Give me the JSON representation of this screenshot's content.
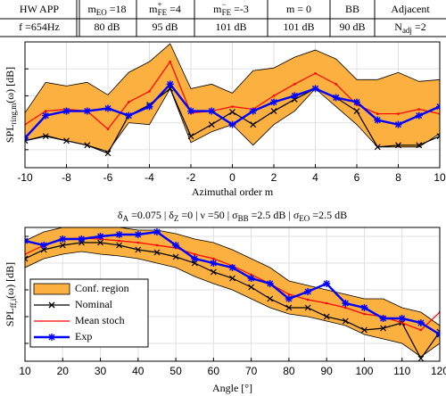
{
  "header": {
    "rows": [
      [
        [
          {
            "t": "HW  APP"
          }
        ],
        [
          {
            "t": "m"
          },
          {
            "sub": "EO"
          },
          {
            "t": " =18"
          }
        ],
        [
          {
            "t": "m"
          },
          {
            "sup": "+"
          },
          {
            "sub": "FE"
          },
          {
            "t": " =4"
          }
        ],
        [
          {
            "t": "m"
          },
          {
            "sup": "−"
          },
          {
            "sub": "FE"
          },
          {
            "t": " =-3"
          }
        ],
        [
          {
            "t": "m = 0"
          }
        ],
        [
          {
            "t": "BB"
          }
        ],
        [
          {
            "t": "Adjacent"
          }
        ]
      ],
      [
        [
          {
            "t": "f =654Hz"
          }
        ],
        [
          {
            "t": "80 dB"
          }
        ],
        [
          {
            "t": "95 dB"
          }
        ],
        [
          {
            "t": "101 dB"
          }
        ],
        [
          {
            "t": "101 dB"
          }
        ],
        [
          {
            "t": "90 dB"
          }
        ],
        [
          {
            "t": "N"
          },
          {
            "sub": "adj"
          },
          {
            "t": " =2"
          }
        ]
      ]
    ]
  },
  "chart_data": [
    {
      "type": "line",
      "xlabel": [
        {
          "t": "Azimuthal order m"
        }
      ],
      "ylabel": [
        {
          "t": "SPL"
        },
        {
          "sub": "ring,m"
        },
        {
          "t": "(ω) [dB]"
        }
      ],
      "x": [
        -10,
        -9,
        -8,
        -7,
        -6,
        -5,
        -4,
        -3,
        -2,
        -1,
        0,
        1,
        2,
        3,
        4,
        5,
        6,
        7,
        8,
        9,
        10
      ],
      "xlim": [
        -10,
        10
      ],
      "xticks": [
        -10,
        -8,
        -6,
        -4,
        -2,
        0,
        2,
        4,
        6,
        8,
        10
      ],
      "ylim": [
        0,
        14
      ],
      "yticks": [
        2,
        5,
        8,
        11
      ],
      "grid": true,
      "band": {
        "color": "#fbb040",
        "upper": [
          6.1,
          9.5,
          9.1,
          9.5,
          8.1,
          10.6,
          11.8,
          13.8,
          8.8,
          9.3,
          8.3,
          10.8,
          11.1,
          12.3,
          13.1,
          12.1,
          9.8,
          9.8,
          10.6,
          9.6,
          9.8
        ],
        "lower": [
          3.0,
          3.6,
          3.0,
          2.5,
          1.8,
          5.0,
          4.8,
          8.8,
          2.8,
          4.0,
          4.8,
          2.5,
          4.8,
          6.3,
          8.8,
          6.8,
          4.8,
          2.3,
          2.3,
          2.3,
          3.8
        ]
      },
      "series": [
        {
          "color": "#000000",
          "marker": "x",
          "values": [
            3.0,
            3.5,
            3.0,
            2.5,
            1.6,
            5.8,
            7.0,
            8.8,
            3.5,
            4.8,
            6.2,
            4.8,
            6.3,
            7.6,
            8.8,
            7.8,
            6.3,
            2.3,
            2.5,
            2.5,
            3.5
          ]
        },
        {
          "color": "#ff0000",
          "marker": "dot",
          "values": [
            4.8,
            6.3,
            6.5,
            6.3,
            4.3,
            7.3,
            8.5,
            11.8,
            6.1,
            6.3,
            6.8,
            6.5,
            8.0,
            9.3,
            10.5,
            9.3,
            7.0,
            6.0,
            6.0,
            6.5,
            6.0
          ]
        },
        {
          "color": "#0000ff",
          "marker": "star",
          "values": [
            3.3,
            5.8,
            6.3,
            6.3,
            6.6,
            5.8,
            6.8,
            9.3,
            6.3,
            6.3,
            4.8,
            6.3,
            7.3,
            8.0,
            8.8,
            7.8,
            7.3,
            5.3,
            4.8,
            5.8,
            6.8
          ]
        }
      ]
    },
    {
      "type": "line",
      "title": [
        {
          "t": "δ"
        },
        {
          "sub": "A"
        },
        {
          "t": " =0.075  |  δ"
        },
        {
          "sub": "Z"
        },
        {
          "t": " =0  |  ν =50  |  σ"
        },
        {
          "sub": "BB"
        },
        {
          "t": " =2.5 dB  |  σ"
        },
        {
          "sub": "EO"
        },
        {
          "t": " =2.5 dB"
        }
      ],
      "xlabel": [
        {
          "t": "Angle [°]"
        }
      ],
      "ylabel": [
        {
          "t": "SPL"
        },
        {
          "sub": "ff,i"
        },
        {
          "t": "(ω) [dB]"
        }
      ],
      "x": [
        10,
        15,
        20,
        25,
        30,
        35,
        40,
        45,
        50,
        55,
        60,
        65,
        70,
        75,
        80,
        85,
        90,
        95,
        100,
        105,
        110,
        115,
        120
      ],
      "xlim": [
        10,
        120
      ],
      "xticks": [
        10,
        20,
        30,
        40,
        50,
        60,
        70,
        80,
        90,
        100,
        110,
        120
      ],
      "ylim": [
        0,
        15
      ],
      "yticks": [
        2,
        5,
        8,
        11,
        14
      ],
      "grid": true,
      "legend": "lower left",
      "band": {
        "name": "Conf. region",
        "color": "#fbb040",
        "upper": [
          13.5,
          14.5,
          15.0,
          15.0,
          15.0,
          15.0,
          14.7,
          14.7,
          14.3,
          13.7,
          13.3,
          12.5,
          11.5,
          10.5,
          9.0,
          8.5,
          8.0,
          7.5,
          7.0,
          7.0,
          6.0,
          5.5,
          4.0
        ],
        "lower": [
          10.5,
          11.5,
          12.0,
          12.3,
          12.0,
          11.8,
          11.5,
          11.0,
          10.5,
          9.5,
          8.7,
          8.0,
          7.0,
          6.0,
          5.3,
          5.0,
          4.5,
          4.0,
          3.0,
          2.5,
          2.0,
          0.5,
          2.0
        ]
      },
      "series": [
        {
          "name": "Nominal",
          "color": "#000000",
          "marker": "x",
          "values": [
            11.5,
            12.5,
            13.0,
            13.3,
            13.3,
            13.0,
            12.5,
            12.2,
            11.7,
            11.0,
            10.0,
            9.3,
            8.3,
            7.0,
            6.0,
            6.0,
            5.0,
            4.5,
            3.5,
            3.7,
            4.3,
            0.3,
            3.3
          ]
        },
        {
          "name": "Mean stoch",
          "color": "#ff0000",
          "marker": "dot",
          "values": [
            12.0,
            13.0,
            13.7,
            13.8,
            13.7,
            13.5,
            13.3,
            13.0,
            12.7,
            12.0,
            11.5,
            10.7,
            9.7,
            8.7,
            7.5,
            6.9,
            6.5,
            6.0,
            5.3,
            5.0,
            4.3,
            3.5,
            5.5
          ]
        },
        {
          "name": "Exp",
          "color": "#0000ff",
          "marker": "star",
          "values": [
            13.5,
            13.0,
            13.7,
            13.7,
            14.0,
            14.2,
            14.2,
            14.5,
            13.0,
            11.5,
            11.0,
            10.5,
            9.3,
            8.7,
            7.0,
            7.8,
            8.7,
            6.5,
            6.0,
            4.8,
            4.8,
            4.3,
            3.0
          ]
        }
      ]
    }
  ]
}
